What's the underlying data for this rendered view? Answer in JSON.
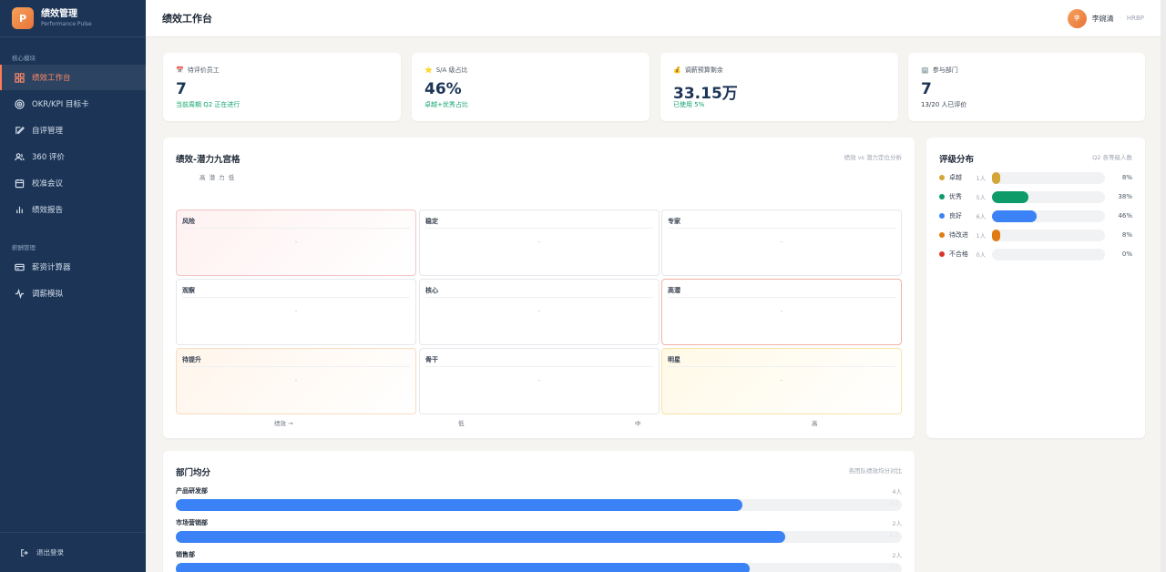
{
  "brand": {
    "logo": "P",
    "title": "绩效管理",
    "subtitle": "Performance Pulse"
  },
  "sidebar": {
    "section_core": "核心模块",
    "section_pay": "薪酬管理",
    "items": [
      {
        "label": "绩效工作台",
        "icon": "grid-icon"
      },
      {
        "label": "OKR/KPI 目标卡",
        "icon": "target-icon"
      },
      {
        "label": "自评管理",
        "icon": "edit-icon"
      },
      {
        "label": "360 评价",
        "icon": "users-icon"
      },
      {
        "label": "校准会议",
        "icon": "calendar-icon"
      },
      {
        "label": "绩效报告",
        "icon": "bar-chart-icon"
      }
    ],
    "pay_items": [
      {
        "label": "薪资计算器",
        "icon": "card-icon"
      },
      {
        "label": "调薪模拟",
        "icon": "pulse-icon"
      }
    ],
    "logout": "退出登录"
  },
  "header": {
    "title": "绩效工作台",
    "user_avatar": "李",
    "user_name": "李婉清",
    "separator": "·",
    "user_role": "HRBP"
  },
  "stats": [
    {
      "emoji": "📅",
      "label": "待评价员工",
      "value": "7",
      "sub": "当前周期 Q2 正在进行"
    },
    {
      "emoji": "⭐",
      "label": "S/A 级占比",
      "value": "46%",
      "sub": "卓越+优秀占比"
    },
    {
      "emoji": "💰",
      "label": "调薪预算剩余",
      "value": "33.15万",
      "sub": "已使用 5%"
    },
    {
      "emoji": "🏢",
      "label": "参与部门",
      "value": "7",
      "sub": "13/20 人已评价"
    }
  ],
  "ninebox": {
    "title": "绩效-潜力九宫格",
    "note": "绩效 vs 潜力定位分析",
    "potential_axis": "高  潜 力  低",
    "cells": [
      "风险",
      "稳定",
      "专家",
      "观察",
      "核心",
      "高潜",
      "待提升",
      "骨干",
      "明星"
    ],
    "empty": "-",
    "x_axis": [
      "绩效 →",
      "低",
      "中",
      "高"
    ]
  },
  "rating": {
    "title": "评级分布",
    "note": "Q2 各等级人数",
    "rows": [
      {
        "label": "卓越",
        "count": "1人",
        "pct": "8%",
        "value": 8,
        "color": "#d4a537"
      },
      {
        "label": "优秀",
        "count": "5人",
        "pct": "38%",
        "value": 38,
        "color": "#0e9b6a"
      },
      {
        "label": "良好",
        "count": "6人",
        "pct": "46%",
        "value": 46,
        "color": "#3b82f6"
      },
      {
        "label": "待改进",
        "count": "1人",
        "pct": "8%",
        "value": 8,
        "color": "#e07b12"
      },
      {
        "label": "不合格",
        "count": "0人",
        "pct": "0%",
        "value": 0,
        "color": "#d9342b"
      }
    ]
  },
  "dept": {
    "title": "部门均分",
    "note": "各团队绩效均分对比",
    "rows": [
      {
        "name": "产品研发部",
        "count": "4人",
        "score": "3.9",
        "value": 78
      },
      {
        "name": "市场营销部",
        "count": "2人",
        "score": "4.2",
        "value": 84
      },
      {
        "name": "销售部",
        "count": "2人",
        "score": "3.9",
        "value": 79
      }
    ]
  }
}
